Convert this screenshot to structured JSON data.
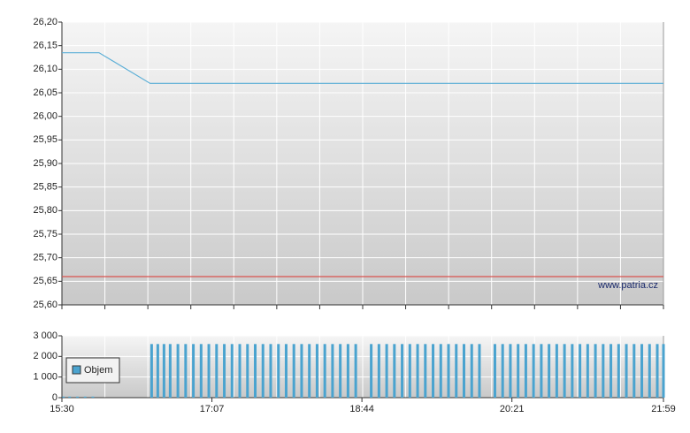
{
  "chart_data": [
    {
      "type": "line",
      "series": [
        {
          "color": "#5aaed6",
          "x": [
            "15:30",
            "15:54",
            "16:27",
            "21:59"
          ],
          "values": [
            26.135,
            26.135,
            26.07,
            26.07
          ]
        },
        {
          "color": "#d9534f",
          "x": [
            "15:30",
            "21:59"
          ],
          "values": [
            25.66,
            25.66
          ]
        }
      ],
      "annotation": "www.patria.cz",
      "xlim": [
        "15:30",
        "21:59"
      ],
      "ylim": [
        25.6,
        26.2
      ],
      "yticks": [
        {
          "value": 25.6,
          "label": "25,60"
        },
        {
          "value": 25.65,
          "label": "25,65"
        },
        {
          "value": 25.7,
          "label": "25,70"
        },
        {
          "value": 25.75,
          "label": "25,75"
        },
        {
          "value": 25.8,
          "label": "25,80"
        },
        {
          "value": 25.85,
          "label": "25,85"
        },
        {
          "value": 25.9,
          "label": "25,90"
        },
        {
          "value": 25.95,
          "label": "25,95"
        },
        {
          "value": 26.0,
          "label": "26,00"
        },
        {
          "value": 26.05,
          "label": "26,05"
        },
        {
          "value": 26.1,
          "label": "26,10"
        },
        {
          "value": 26.15,
          "label": "26,15"
        },
        {
          "value": 26.2,
          "label": "26,20"
        }
      ],
      "grid": true
    },
    {
      "type": "bar",
      "x": [
        "15:31",
        "15:35",
        "15:40",
        "15:45",
        "15:50",
        "16:28",
        "16:32",
        "16:36",
        "16:40",
        "16:45",
        "16:50",
        "16:55",
        "17:00",
        "17:05",
        "17:10",
        "17:15",
        "17:20",
        "17:25",
        "17:30",
        "17:35",
        "17:40",
        "17:45",
        "17:50",
        "17:55",
        "18:00",
        "18:05",
        "18:10",
        "18:15",
        "18:20",
        "18:25",
        "18:30",
        "18:35",
        "18:40",
        "18:50",
        "18:55",
        "19:00",
        "19:05",
        "19:10",
        "19:15",
        "19:20",
        "19:25",
        "19:30",
        "19:35",
        "19:40",
        "19:45",
        "19:50",
        "19:55",
        "20:00",
        "20:10",
        "20:15",
        "20:20",
        "20:25",
        "20:30",
        "20:35",
        "20:40",
        "20:45",
        "20:50",
        "20:55",
        "21:00",
        "21:05",
        "21:10",
        "21:15",
        "21:20",
        "21:25",
        "21:30",
        "21:35",
        "21:40",
        "21:45",
        "21:50",
        "21:55",
        "21:59"
      ],
      "series": [
        {
          "name": "Objem",
          "color": "#4aa3cf",
          "values": [
            50,
            50,
            50,
            50,
            50,
            2600,
            2600,
            2600,
            2600,
            2600,
            2600,
            2600,
            2600,
            2600,
            2600,
            2600,
            2600,
            2600,
            2600,
            2600,
            2600,
            2600,
            2600,
            2600,
            2600,
            2600,
            2600,
            2600,
            2600,
            2600,
            2600,
            2600,
            2600,
            2600,
            2600,
            2600,
            2600,
            2600,
            2600,
            2600,
            2600,
            2600,
            2600,
            2600,
            2600,
            2600,
            2600,
            2600,
            2600,
            2600,
            2600,
            2600,
            2600,
            2600,
            2600,
            2600,
            2600,
            2600,
            2600,
            2600,
            2600,
            2600,
            2600,
            2600,
            2600,
            2600,
            2600,
            2600,
            2600,
            2600,
            2600
          ]
        }
      ],
      "xlim": [
        "15:30",
        "21:59"
      ],
      "xticks": [
        "15:30",
        "17:07",
        "18:44",
        "20:21",
        "21:59"
      ],
      "ylim": [
        0,
        3000
      ],
      "yticks": [
        0,
        {
          "value": 1000,
          "label": "1 000"
        },
        {
          "value": 2000,
          "label": "2 000"
        },
        {
          "value": 3000,
          "label": "3 000"
        }
      ],
      "grid": true,
      "legend": "left"
    }
  ]
}
